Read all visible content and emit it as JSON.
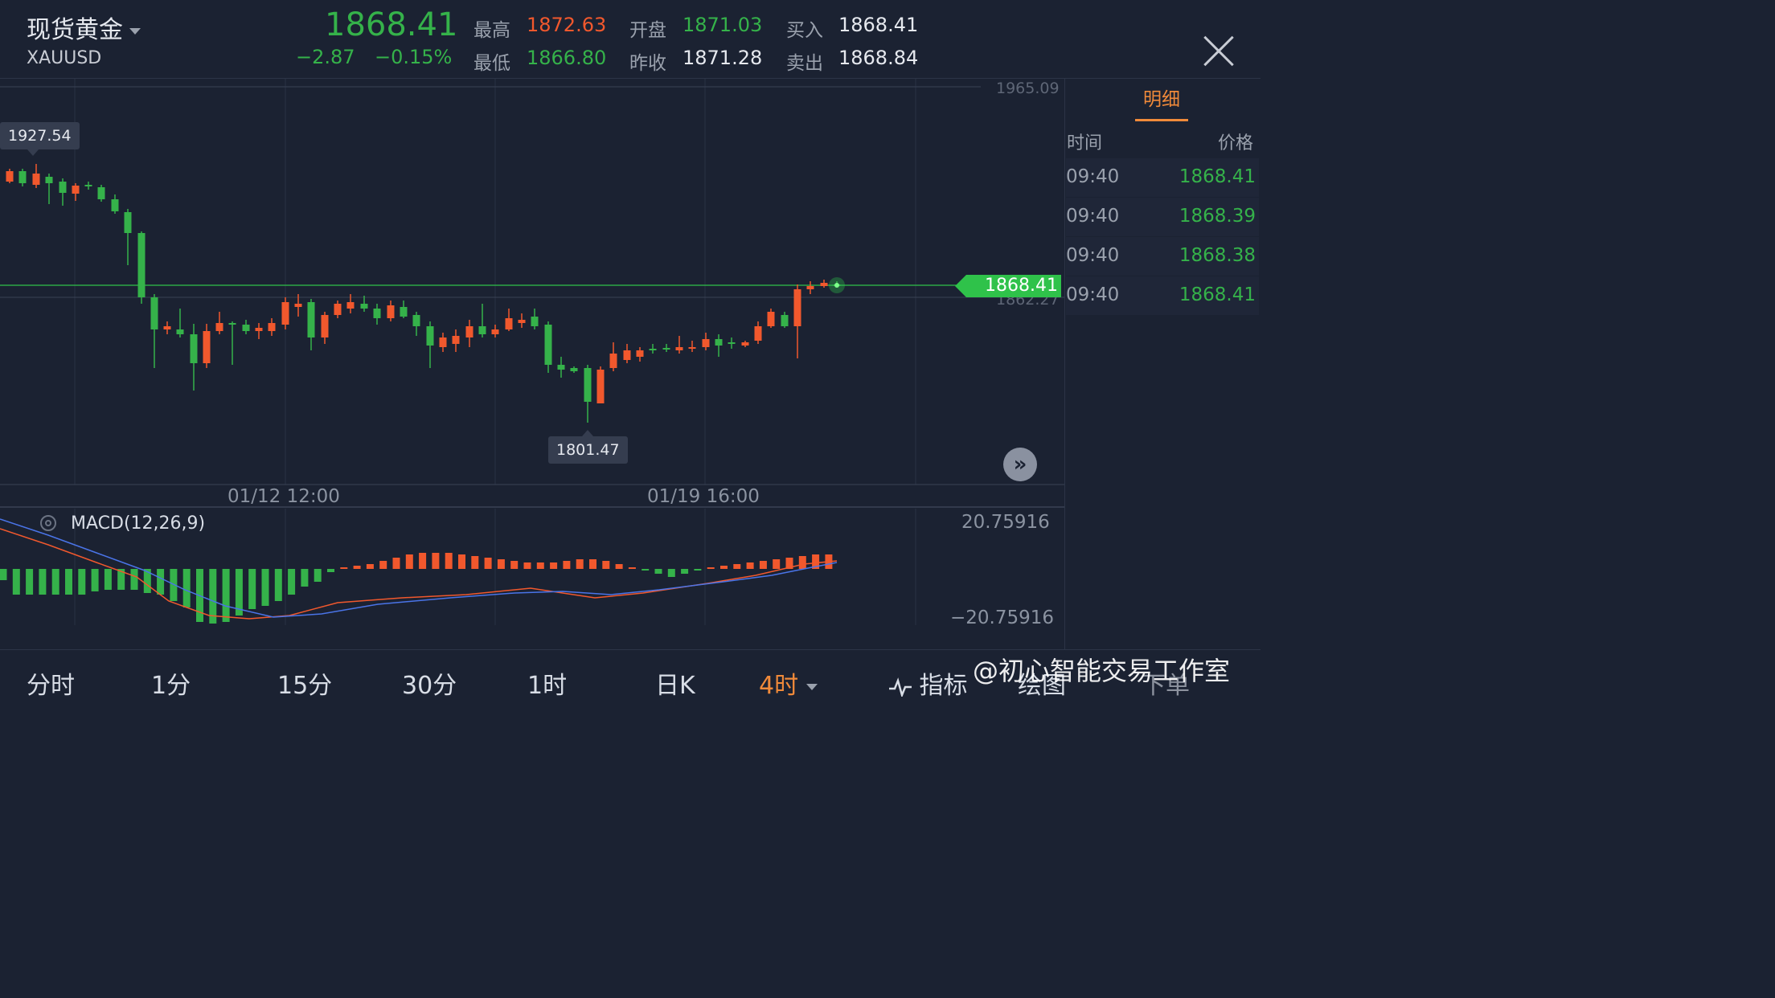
{
  "header": {
    "name": "现货黄金",
    "symbol": "XAUUSD",
    "last_price": "1868.41",
    "change": "−2.87",
    "change_pct": "−0.15%",
    "high_label": "最高",
    "high": "1872.63",
    "low_label": "最低",
    "low": "1866.80",
    "open_label": "开盘",
    "open": "1871.03",
    "prev_close_label": "昨收",
    "prev_close": "1871.28",
    "bid_label": "买入",
    "bid": "1868.41",
    "ask_label": "卖出",
    "ask": "1868.84"
  },
  "chart": {
    "axis_top": "1965.09",
    "axis_mid": "1862.27",
    "max_label": "1927.54",
    "min_label": "1801.47",
    "current_price": "1868.41",
    "x_labels": [
      "01/12 12:00",
      "01/19 16:00"
    ],
    "up_color": "#f1582d",
    "down_color": "#35b24a"
  },
  "macd": {
    "title": "MACD(12,26,9)",
    "upper": "20.75916",
    "lower": "−20.75916"
  },
  "sidebar": {
    "tab": "明细",
    "col_time": "时间",
    "col_price": "价格",
    "ticks": [
      {
        "time": "09:40",
        "price": "1868.41"
      },
      {
        "time": "09:40",
        "price": "1868.39"
      },
      {
        "time": "09:40",
        "price": "1868.38"
      },
      {
        "time": "09:40",
        "price": "1868.41"
      }
    ]
  },
  "bottom_tabs": {
    "t1": "分时",
    "t2": "1分",
    "t3": "15分",
    "t4": "30分",
    "t5": "1时",
    "t6": "日K",
    "t7": "4时",
    "indicator": "指标",
    "draw": "绘图",
    "order": "下单"
  },
  "watermark": "@初心智能交易工作室"
}
